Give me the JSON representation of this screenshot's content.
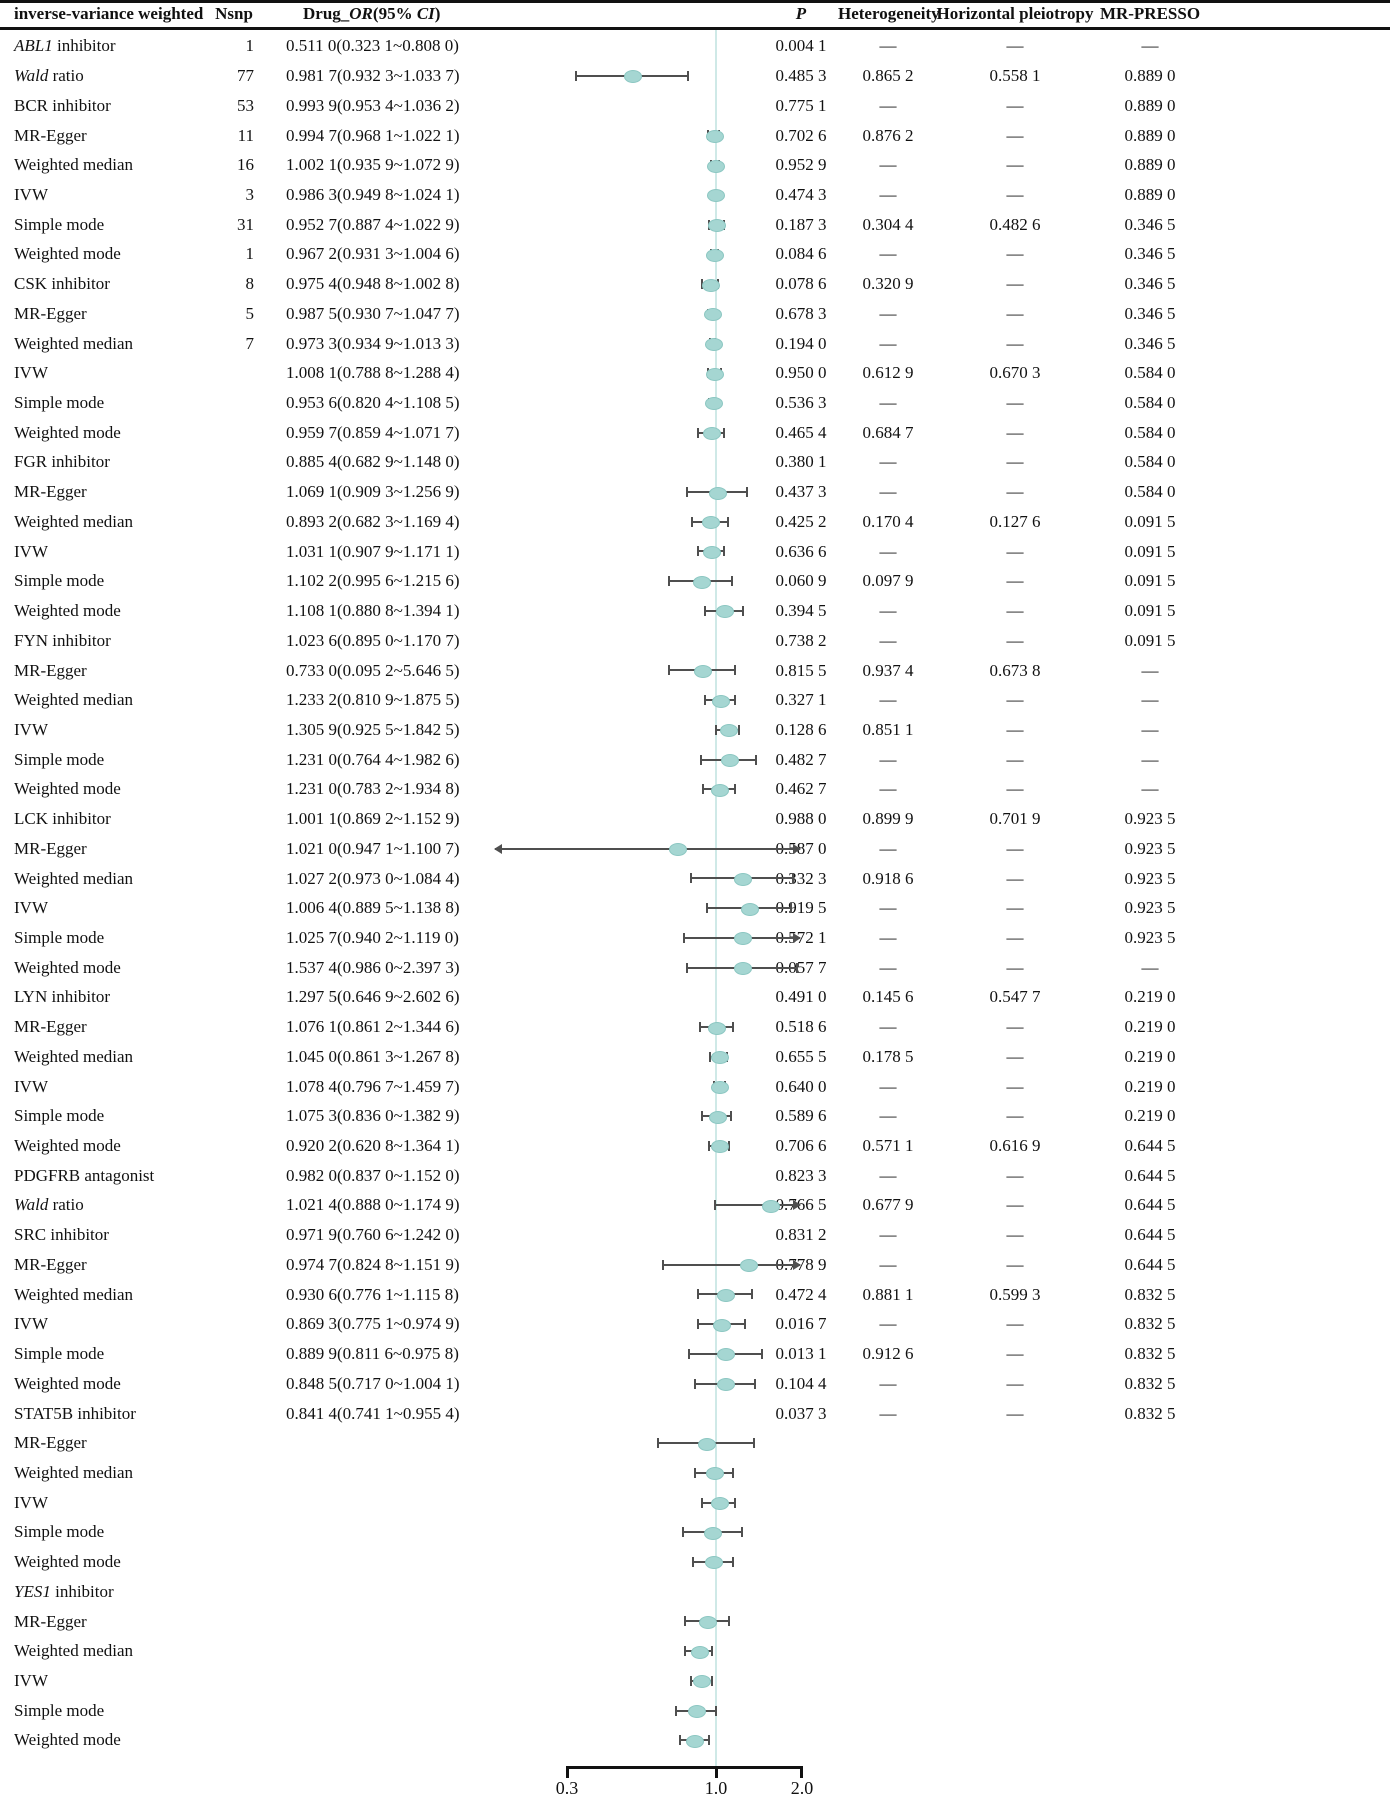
{
  "header": {
    "label": "inverse-variance weighted",
    "nsnp": "Nsnp",
    "or_pre": "Drug_",
    "or_it1": "OR",
    "or_mid": "(95% ",
    "or_it2": "CI",
    "or_post": ")",
    "p": "P",
    "het": "Heterogeneity",
    "pleio": "Horizontal pleiotropy",
    "presso": "MR-PRESSO"
  },
  "colors": {
    "marker_fill": "#a5d6d2",
    "marker_edge": "#8cc7c2",
    "ref_line": "#cfe9e7",
    "ci_bar": "#4f4f4f",
    "text": "#111111",
    "rule": "#111111"
  },
  "chart_data": {
    "type": "scatter",
    "subtype": "forest-plot",
    "xscale": "log",
    "xlim": [
      0.3,
      2.0
    ],
    "x_ticks": [
      "0.3",
      "1.0",
      "2.0"
    ],
    "reference_value": 1.0,
    "columns": [
      "inverse-variance weighted",
      "Nsnp",
      "Drug_OR(95% CI)",
      "P",
      "Heterogeneity",
      "Horizontal pleiotropy",
      "MR-PRESSO"
    ],
    "rows": [
      {
        "it": "ABL1",
        "t": " inhibitor",
        "nsnp": "1",
        "or": "0.511 0(0.323 1~0.808 0)",
        "p": "0.004 1",
        "het": "—",
        "pl": "—",
        "pr": "—",
        "bar": null,
        "ar": ""
      },
      {
        "it": "Wald",
        "t": " ratio",
        "nsnp": "77",
        "or": "0.981 7(0.932 3~1.033 7)",
        "p": "0.485 3",
        "het": "0.865 2",
        "pl": "0.558 1",
        "pr": "0.889 0",
        "bar": [
          0.3231,
          0.511,
          0.808
        ],
        "ar": ""
      },
      {
        "it": "",
        "t": "BCR inhibitor",
        "nsnp": "53",
        "or": "0.993 9(0.953 4~1.036 2)",
        "p": "0.775 1",
        "het": "—",
        "pl": "—",
        "pr": "0.889 0",
        "bar": null,
        "ar": ""
      },
      {
        "it": "",
        "t": "MR-Egger",
        "nsnp": "11",
        "or": "0.994 7(0.968 1~1.022 1)",
        "p": "0.702 6",
        "het": "0.876 2",
        "pl": "—",
        "pr": "0.889 0",
        "bar": [
          0.9323,
          0.9817,
          1.0337
        ],
        "ar": ""
      },
      {
        "it": "",
        "t": "Weighted median",
        "nsnp": "16",
        "or": "1.002 1(0.935 9~1.072 9)",
        "p": "0.952 9",
        "het": "—",
        "pl": "—",
        "pr": "0.889 0",
        "bar": [
          0.9534,
          0.9939,
          1.0362
        ],
        "ar": ""
      },
      {
        "it": "",
        "t": "IVW",
        "nsnp": "3",
        "or": "0.986 3(0.949 8~1.024 1)",
        "p": "0.474 3",
        "het": "—",
        "pl": "—",
        "pr": "0.889 0",
        "bar": [
          0.9681,
          0.9947,
          1.0221
        ],
        "ar": ""
      },
      {
        "it": "",
        "t": "Simple mode",
        "nsnp": "31",
        "or": "0.952 7(0.887 4~1.022 9)",
        "p": "0.187 3",
        "het": "0.304 4",
        "pl": "0.482 6",
        "pr": "0.346 5",
        "bar": [
          0.9359,
          1.0021,
          1.0729
        ],
        "ar": ""
      },
      {
        "it": "",
        "t": "Weighted mode",
        "nsnp": "1",
        "or": "0.967 2(0.931 3~1.004 6)",
        "p": "0.084 6",
        "het": "—",
        "pl": "—",
        "pr": "0.346 5",
        "bar": [
          0.9498,
          0.9863,
          1.0241
        ],
        "ar": ""
      },
      {
        "it": "",
        "t": "CSK inhibitor",
        "nsnp": "8",
        "or": "0.975 4(0.948 8~1.002 8)",
        "p": "0.078 6",
        "het": "0.320 9",
        "pl": "—",
        "pr": "0.346 5",
        "bar": [
          0.8874,
          0.9527,
          1.0229
        ],
        "ar": ""
      },
      {
        "it": "",
        "t": "MR-Egger",
        "nsnp": "5",
        "or": "0.987 5(0.930 7~1.047 7)",
        "p": "0.678 3",
        "het": "—",
        "pl": "—",
        "pr": "0.346 5",
        "bar": [
          0.9313,
          0.9672,
          1.0046
        ],
        "ar": ""
      },
      {
        "it": "",
        "t": "Weighted median",
        "nsnp": "7",
        "or": "0.973 3(0.934 9~1.013 3)",
        "p": "0.194 0",
        "het": "—",
        "pl": "—",
        "pr": "0.346 5",
        "bar": [
          0.9488,
          0.9754,
          1.0028
        ],
        "ar": ""
      },
      {
        "it": "",
        "t": "IVW",
        "nsnp": "",
        "or": "1.008 1(0.788 8~1.288 4)",
        "p": "0.950 0",
        "het": "0.612 9",
        "pl": "0.670 3",
        "pr": "0.584 0",
        "bar": [
          0.9307,
          0.9875,
          1.0477
        ],
        "ar": ""
      },
      {
        "it": "",
        "t": "Simple mode",
        "nsnp": "",
        "or": "0.953 6(0.820 4~1.108 5)",
        "p": "0.536 3",
        "het": "—",
        "pl": "—",
        "pr": "0.584 0",
        "bar": [
          0.9349,
          0.9733,
          1.0133
        ],
        "ar": ""
      },
      {
        "it": "",
        "t": "Weighted mode",
        "nsnp": "",
        "or": "0.959 7(0.859 4~1.071 7)",
        "p": "0.465 4",
        "het": "0.684 7",
        "pl": "—",
        "pr": "0.584 0",
        "bar": [
          0.8594,
          0.9597,
          1.0717
        ],
        "ar": ""
      },
      {
        "it": "",
        "t": "FGR inhibitor",
        "nsnp": "",
        "or": "0.885 4(0.682 9~1.148 0)",
        "p": "0.380 1",
        "het": "—",
        "pl": "—",
        "pr": "0.584 0",
        "bar": null,
        "ar": ""
      },
      {
        "it": "",
        "t": "MR-Egger",
        "nsnp": "",
        "or": "1.069 1(0.909 3~1.256 9)",
        "p": "0.437 3",
        "het": "—",
        "pl": "—",
        "pr": "0.584 0",
        "bar": [
          0.7888,
          1.0081,
          1.2884
        ],
        "ar": ""
      },
      {
        "it": "",
        "t": "Weighted median",
        "nsnp": "",
        "or": "0.893 2(0.682 3~1.169 4)",
        "p": "0.425 2",
        "het": "0.170 4",
        "pl": "0.127 6",
        "pr": "0.091 5",
        "bar": [
          0.8204,
          0.9536,
          1.1085
        ],
        "ar": ""
      },
      {
        "it": "",
        "t": "IVW",
        "nsnp": "",
        "or": "1.031 1(0.907 9~1.171 1)",
        "p": "0.636 6",
        "het": "—",
        "pl": "—",
        "pr": "0.091 5",
        "bar": [
          0.8594,
          0.9597,
          1.0717
        ],
        "ar": ""
      },
      {
        "it": "",
        "t": "Simple mode",
        "nsnp": "",
        "or": "1.102 2(0.995 6~1.215 6)",
        "p": "0.060 9",
        "het": "0.097 9",
        "pl": "—",
        "pr": "0.091 5",
        "bar": [
          0.6829,
          0.8854,
          1.148
        ],
        "ar": ""
      },
      {
        "it": "",
        "t": "Weighted mode",
        "nsnp": "",
        "or": "1.108 1(0.880 8~1.394 1)",
        "p": "0.394 5",
        "het": "—",
        "pl": "—",
        "pr": "0.091 5",
        "bar": [
          0.9093,
          1.0691,
          1.2569
        ],
        "ar": ""
      },
      {
        "it": "",
        "t": "FYN inhibitor",
        "nsnp": "",
        "or": "1.023 6(0.895 0~1.170 7)",
        "p": "0.738 2",
        "het": "—",
        "pl": "—",
        "pr": "0.091 5",
        "bar": null,
        "ar": ""
      },
      {
        "it": "",
        "t": "MR-Egger",
        "nsnp": "",
        "or": "0.733 0(0.095 2~5.646 5)",
        "p": "0.815 5",
        "het": "0.937 4",
        "pl": "0.673 8",
        "pr": "—",
        "bar": [
          0.6823,
          0.8932,
          1.1694
        ],
        "ar": ""
      },
      {
        "it": "",
        "t": "Weighted median",
        "nsnp": "",
        "or": "1.233 2(0.810 9~1.875 5)",
        "p": "0.327 1",
        "het": "—",
        "pl": "—",
        "pr": "—",
        "bar": [
          0.9079,
          1.0311,
          1.1711
        ],
        "ar": ""
      },
      {
        "it": "",
        "t": "IVW",
        "nsnp": "",
        "or": "1.305 9(0.925 5~1.842 5)",
        "p": "0.128 6",
        "het": "0.851 1",
        "pl": "—",
        "pr": "—",
        "bar": [
          0.9956,
          1.1022,
          1.2156
        ],
        "ar": ""
      },
      {
        "it": "",
        "t": "Simple mode",
        "nsnp": "",
        "or": "1.231 0(0.764 4~1.982 6)",
        "p": "0.482 7",
        "het": "—",
        "pl": "—",
        "pr": "—",
        "bar": [
          0.8808,
          1.1081,
          1.3941
        ],
        "ar": ""
      },
      {
        "it": "",
        "t": "Weighted mode",
        "nsnp": "",
        "or": "1.231 0(0.783 2~1.934 8)",
        "p": "0.462 7",
        "het": "—",
        "pl": "—",
        "pr": "—",
        "bar": [
          0.895,
          1.0236,
          1.1707
        ],
        "ar": ""
      },
      {
        "it": "",
        "t": "LCK inhibitor",
        "nsnp": "",
        "or": "1.001 1(0.869 2~1.152 9)",
        "p": "0.988 0",
        "het": "0.899 9",
        "pl": "0.701 9",
        "pr": "0.923 5",
        "bar": null,
        "ar": ""
      },
      {
        "it": "",
        "t": "MR-Egger",
        "nsnp": "",
        "or": "1.021 0(0.947 1~1.100 7)",
        "p": "0.587 0",
        "het": "—",
        "pl": "—",
        "pr": "0.923 5",
        "bar": [
          0.0952,
          0.733,
          5.6465
        ],
        "ar": "both"
      },
      {
        "it": "",
        "t": "Weighted median",
        "nsnp": "",
        "or": "1.027 2(0.973 0~1.084 4)",
        "p": "0.332 3",
        "het": "0.918 6",
        "pl": "—",
        "pr": "0.923 5",
        "bar": [
          0.8109,
          1.2332,
          1.8755
        ],
        "ar": ""
      },
      {
        "it": "",
        "t": "IVW",
        "nsnp": "",
        "or": "1.006 4(0.889 5~1.138 8)",
        "p": "0.919 5",
        "het": "—",
        "pl": "—",
        "pr": "0.923 5",
        "bar": [
          0.9255,
          1.3059,
          1.8425
        ],
        "ar": ""
      },
      {
        "it": "",
        "t": "Simple mode",
        "nsnp": "",
        "or": "1.025 7(0.940 2~1.119 0)",
        "p": "0.572 1",
        "het": "—",
        "pl": "—",
        "pr": "0.923 5",
        "bar": [
          0.7644,
          1.231,
          1.9826
        ],
        "ar": ""
      },
      {
        "it": "",
        "t": "Weighted mode",
        "nsnp": "",
        "or": "1.537 4(0.986 0~2.397 3)",
        "p": "0.057 7",
        "het": "—",
        "pl": "—",
        "pr": "—",
        "bar": [
          0.7832,
          1.231,
          1.9348
        ],
        "ar": ""
      },
      {
        "it": "",
        "t": "LYN inhibitor",
        "nsnp": "",
        "or": "1.297 5(0.646 9~2.602 6)",
        "p": "0.491 0",
        "het": "0.145 6",
        "pl": "0.547 7",
        "pr": "0.219 0",
        "bar": null,
        "ar": ""
      },
      {
        "it": "",
        "t": "MR-Egger",
        "nsnp": "",
        "or": "1.076 1(0.861 2~1.344 6)",
        "p": "0.518 6",
        "het": "—",
        "pl": "—",
        "pr": "0.219 0",
        "bar": [
          0.8692,
          1.0011,
          1.1529
        ],
        "ar": ""
      },
      {
        "it": "",
        "t": "Weighted median",
        "nsnp": "",
        "or": "1.045 0(0.861 3~1.267 8)",
        "p": "0.655 5",
        "het": "0.178 5",
        "pl": "—",
        "pr": "0.219 0",
        "bar": [
          0.9471,
          1.021,
          1.1007
        ],
        "ar": ""
      },
      {
        "it": "",
        "t": "IVW",
        "nsnp": "",
        "or": "1.078 4(0.796 7~1.459 7)",
        "p": "0.640 0",
        "het": "—",
        "pl": "—",
        "pr": "0.219 0",
        "bar": [
          0.973,
          1.0272,
          1.0844
        ],
        "ar": ""
      },
      {
        "it": "",
        "t": "Simple mode",
        "nsnp": "",
        "or": "1.075 3(0.836 0~1.382 9)",
        "p": "0.589 6",
        "het": "—",
        "pl": "—",
        "pr": "0.219 0",
        "bar": [
          0.8895,
          1.0064,
          1.1388
        ],
        "ar": ""
      },
      {
        "it": "",
        "t": "Weighted mode",
        "nsnp": "",
        "or": "0.920 2(0.620 8~1.364 1)",
        "p": "0.706 6",
        "het": "0.571 1",
        "pl": "0.616 9",
        "pr": "0.644 5",
        "bar": [
          0.9402,
          1.0257,
          1.119
        ],
        "ar": ""
      },
      {
        "it": "",
        "t": "PDGFRB antagonist",
        "nsnp": "",
        "or": "0.982 0(0.837 0~1.152 0)",
        "p": "0.823 3",
        "het": "—",
        "pl": "—",
        "pr": "0.644 5",
        "bar": null,
        "ar": ""
      },
      {
        "it": "Wald",
        "t": " ratio",
        "nsnp": "",
        "or": "1.021 4(0.888 0~1.174 9)",
        "p": "0.766 5",
        "het": "0.677 9",
        "pl": "—",
        "pr": "0.644 5",
        "bar": [
          0.986,
          1.5374,
          2.3973
        ],
        "ar": "right"
      },
      {
        "it": "",
        "t": "SRC inhibitor",
        "nsnp": "",
        "or": "0.971 9(0.760 6~1.242 0)",
        "p": "0.831 2",
        "het": "—",
        "pl": "—",
        "pr": "0.644 5",
        "bar": null,
        "ar": ""
      },
      {
        "it": "",
        "t": "MR-Egger",
        "nsnp": "",
        "or": "0.974 7(0.824 8~1.151 9)",
        "p": "0.778 9",
        "het": "—",
        "pl": "—",
        "pr": "0.644 5",
        "bar": [
          0.6469,
          1.2975,
          2.6026
        ],
        "ar": "right"
      },
      {
        "it": "",
        "t": "Weighted median",
        "nsnp": "",
        "or": "0.930 6(0.776 1~1.115 8)",
        "p": "0.472 4",
        "het": "0.881 1",
        "pl": "0.599 3",
        "pr": "0.832 5",
        "bar": [
          0.8612,
          1.0761,
          1.3446
        ],
        "ar": ""
      },
      {
        "it": "",
        "t": "IVW",
        "nsnp": "",
        "or": "0.869 3(0.775 1~0.974 9)",
        "p": "0.016 7",
        "het": "—",
        "pl": "—",
        "pr": "0.832 5",
        "bar": [
          0.8613,
          1.045,
          1.2678
        ],
        "ar": ""
      },
      {
        "it": "",
        "t": "Simple mode",
        "nsnp": "",
        "or": "0.889 9(0.811 6~0.975 8)",
        "p": "0.013 1",
        "het": "0.912 6",
        "pl": "—",
        "pr": "0.832 5",
        "bar": [
          0.7967,
          1.0784,
          1.4597
        ],
        "ar": ""
      },
      {
        "it": "",
        "t": "Weighted mode",
        "nsnp": "",
        "or": "0.848 5(0.717 0~1.004 1)",
        "p": "0.104 4",
        "het": "—",
        "pl": "—",
        "pr": "0.832 5",
        "bar": [
          0.836,
          1.0753,
          1.3829
        ],
        "ar": ""
      },
      {
        "it": "",
        "t": "STAT5B inhibitor",
        "nsnp": "",
        "or": "0.841 4(0.741 1~0.955 4)",
        "p": "0.037 3",
        "het": "—",
        "pl": "—",
        "pr": "0.832 5",
        "bar": null,
        "ar": ""
      },
      {
        "it": "",
        "t": "MR-Egger",
        "nsnp": "",
        "or": "",
        "p": "",
        "het": "",
        "pl": "",
        "pr": "",
        "bar": [
          0.6208,
          0.9202,
          1.3641
        ],
        "ar": ""
      },
      {
        "it": "",
        "t": "Weighted median",
        "nsnp": "",
        "or": "",
        "p": "",
        "het": "",
        "pl": "",
        "pr": "",
        "bar": [
          0.837,
          0.982,
          1.152
        ],
        "ar": ""
      },
      {
        "it": "",
        "t": "IVW",
        "nsnp": "",
        "or": "",
        "p": "",
        "het": "",
        "pl": "",
        "pr": "",
        "bar": [
          0.888,
          1.0214,
          1.1749
        ],
        "ar": ""
      },
      {
        "it": "",
        "t": "Simple mode",
        "nsnp": "",
        "or": "",
        "p": "",
        "het": "",
        "pl": "",
        "pr": "",
        "bar": [
          0.7606,
          0.9719,
          1.242
        ],
        "ar": ""
      },
      {
        "it": "",
        "t": "Weighted mode",
        "nsnp": "",
        "or": "",
        "p": "",
        "het": "",
        "pl": "",
        "pr": "",
        "bar": [
          0.8248,
          0.9747,
          1.1519
        ],
        "ar": ""
      },
      {
        "it": "YES1",
        "t": " inhibitor",
        "nsnp": "",
        "or": "",
        "p": "",
        "het": "",
        "pl": "",
        "pr": "",
        "bar": null,
        "ar": ""
      },
      {
        "it": "",
        "t": "MR-Egger",
        "nsnp": "",
        "or": "",
        "p": "",
        "het": "",
        "pl": "",
        "pr": "",
        "bar": [
          0.7761,
          0.9306,
          1.1158
        ],
        "ar": ""
      },
      {
        "it": "",
        "t": "Weighted median",
        "nsnp": "",
        "or": "",
        "p": "",
        "het": "",
        "pl": "",
        "pr": "",
        "bar": [
          0.7751,
          0.8693,
          0.9749
        ],
        "ar": ""
      },
      {
        "it": "",
        "t": "IVW",
        "nsnp": "",
        "or": "",
        "p": "",
        "het": "",
        "pl": "",
        "pr": "",
        "bar": [
          0.8116,
          0.8899,
          0.9758
        ],
        "ar": ""
      },
      {
        "it": "",
        "t": "Simple mode",
        "nsnp": "",
        "or": "",
        "p": "",
        "het": "",
        "pl": "",
        "pr": "",
        "bar": [
          0.717,
          0.8485,
          1.0041
        ],
        "ar": ""
      },
      {
        "it": "",
        "t": "Weighted mode",
        "nsnp": "",
        "or": "",
        "p": "",
        "het": "",
        "pl": "",
        "pr": "",
        "bar": [
          0.7411,
          0.8414,
          0.9554
        ],
        "ar": ""
      }
    ]
  },
  "axis": {
    "t1": "0.3",
    "t2": "1.0",
    "t3": "2.0"
  }
}
